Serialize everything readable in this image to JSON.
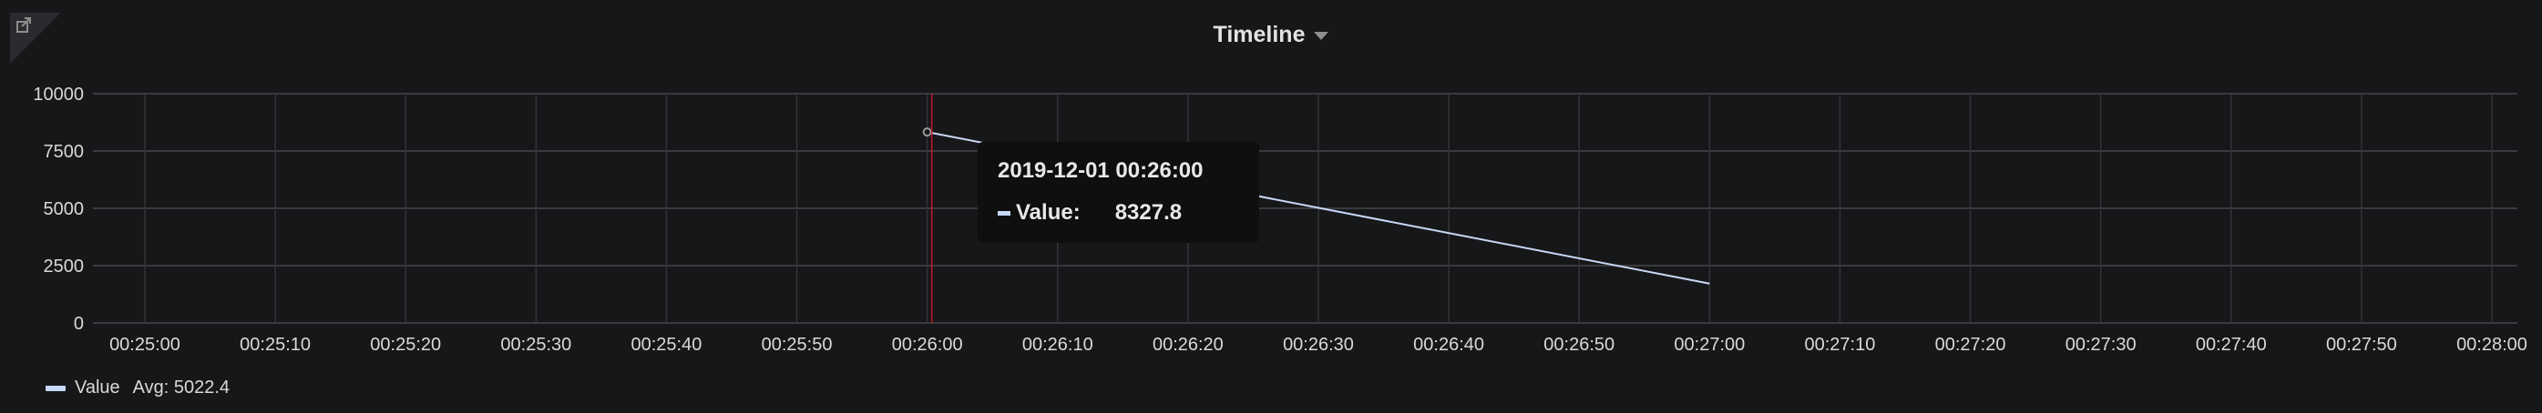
{
  "panel": {
    "title": "Timeline",
    "link_icon": "external-link-icon",
    "menu_icon": "caret-down-icon"
  },
  "chart_data": {
    "type": "line",
    "title": "Timeline",
    "x_ticks": [
      "00:25:00",
      "00:25:10",
      "00:25:20",
      "00:25:30",
      "00:25:40",
      "00:25:50",
      "00:26:00",
      "00:26:10",
      "00:26:20",
      "00:26:30",
      "00:26:40",
      "00:26:50",
      "00:27:00",
      "00:27:10",
      "00:27:20",
      "00:27:30",
      "00:27:40",
      "00:27:50",
      "00:28:00"
    ],
    "y_ticks": [
      "0",
      "2500",
      "5000",
      "7500",
      "10000"
    ],
    "xlim": [
      "00:25:00",
      "00:28:00"
    ],
    "ylim": [
      0,
      10000
    ],
    "grid": true,
    "legend_placement": "bottom-left",
    "series": [
      {
        "name": "Value",
        "color": "#c8d8f8",
        "x": [
          "00:26:00",
          "00:27:00"
        ],
        "y": [
          8327.8,
          1717.0
        ]
      }
    ],
    "cursor_color": "#c4162a"
  },
  "tooltip": {
    "time": "2019-12-01 00:26:00",
    "label": "Value:",
    "value": "8327.8"
  },
  "legend": {
    "name": "Value",
    "avg": "Avg: 5022.4"
  }
}
